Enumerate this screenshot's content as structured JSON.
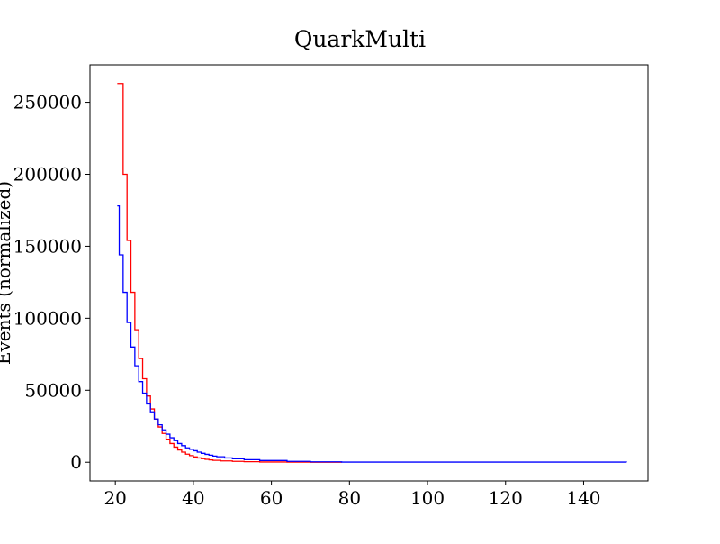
{
  "chart_data": {
    "type": "line",
    "step": true,
    "title": "QuarkMulti",
    "xlabel": "",
    "ylabel": "Events (normalized)",
    "xlim": [
      13.5,
      156.5
    ],
    "ylim": [
      -13000,
      276000
    ],
    "x_ticks": [
      20,
      40,
      60,
      80,
      100,
      120,
      140
    ],
    "x_tick_labels": [
      "20",
      "40",
      "60",
      "80",
      "100",
      "120",
      "140"
    ],
    "y_ticks": [
      0,
      50000,
      100000,
      150000,
      200000,
      250000
    ],
    "y_tick_labels": [
      "0",
      "50000",
      "100000",
      "150000",
      "200000",
      "250000"
    ],
    "grid": false,
    "legend": "none",
    "series": [
      {
        "color": "#ff0000",
        "x": [
          20.5,
          22,
          23,
          24,
          25,
          26,
          27,
          28,
          29,
          30,
          31,
          32,
          33,
          34,
          35,
          36,
          37,
          38,
          39,
          40,
          41,
          42,
          43,
          44,
          45,
          47,
          50,
          53,
          57,
          64,
          70,
          78
        ],
        "y": [
          263000,
          200000,
          154000,
          118000,
          92000,
          72000,
          58000,
          46000,
          37000,
          30000,
          24500,
          20000,
          16000,
          13000,
          10500,
          8500,
          7000,
          5600,
          4600,
          3700,
          3000,
          2500,
          2000,
          1600,
          1300,
          900,
          600,
          350,
          180,
          70,
          25,
          0
        ]
      },
      {
        "color": "#0000ff",
        "x": [
          20.5,
          21,
          22,
          23,
          24,
          25,
          26,
          27,
          28,
          29,
          30,
          31,
          32,
          33,
          34,
          35,
          36,
          37,
          38,
          39,
          40,
          41,
          42,
          43,
          44,
          45,
          46,
          48,
          50,
          53,
          57,
          64,
          70,
          78,
          151
        ],
        "y": [
          178000,
          144000,
          118000,
          97000,
          80000,
          67000,
          56000,
          48000,
          40500,
          35000,
          30000,
          26000,
          22500,
          19500,
          17000,
          15000,
          13000,
          11500,
          10000,
          9000,
          8000,
          7000,
          6200,
          5500,
          4900,
          4300,
          3800,
          3000,
          2400,
          1800,
          1200,
          600,
          300,
          100,
          0
        ]
      }
    ]
  }
}
